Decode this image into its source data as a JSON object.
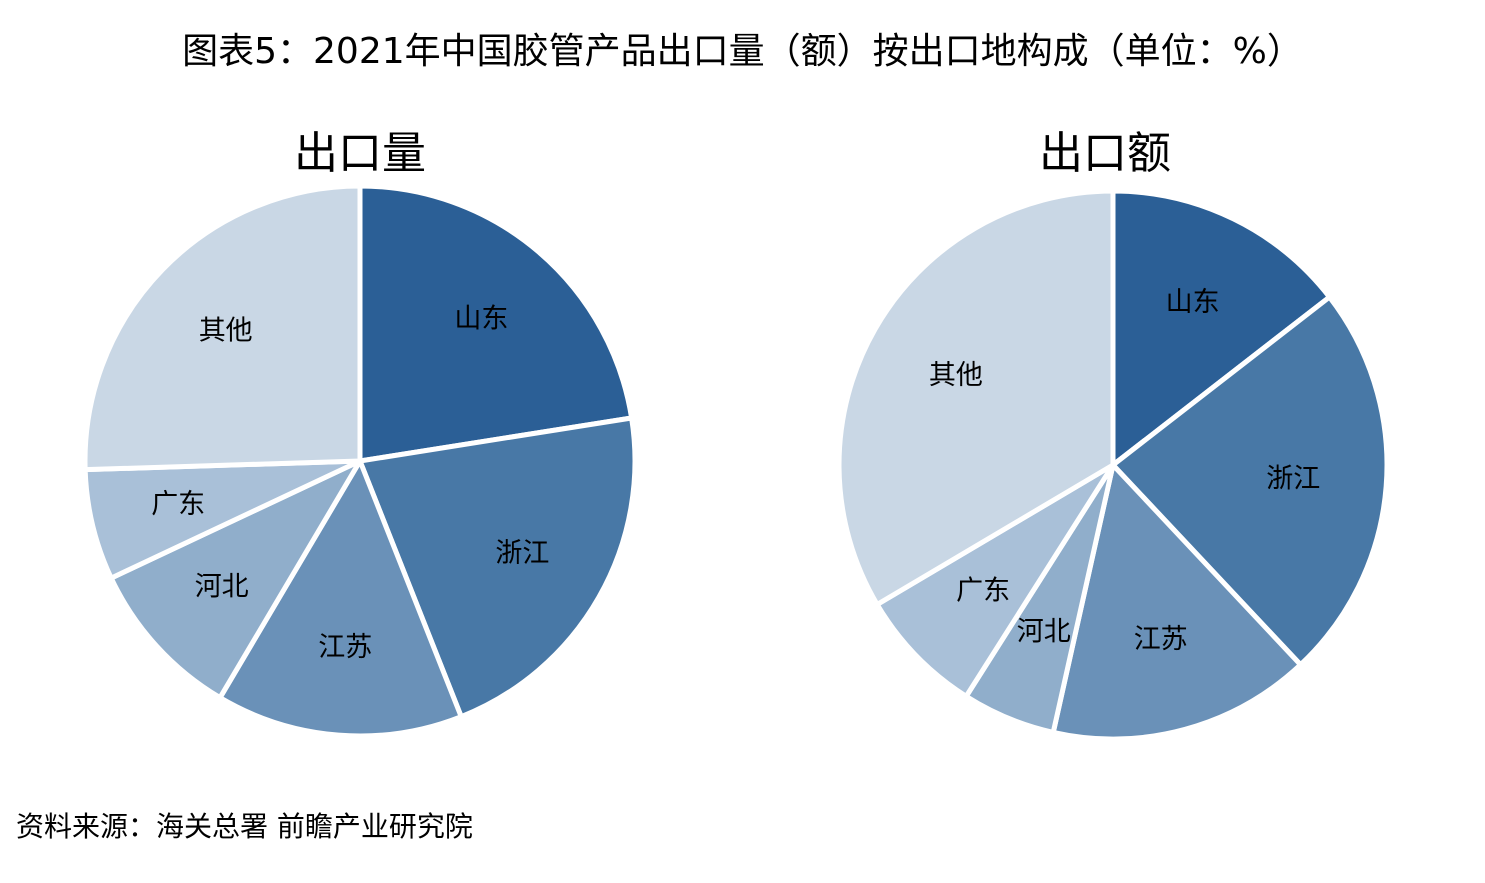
{
  "title": "图表5：2021年中国胶管产品出口量（额）按出口地构成（单位：%）",
  "source": "资料来源：海关总署 前瞻产业研究院",
  "chart_data": [
    {
      "type": "pie",
      "title": "出口量",
      "categories": [
        "山东",
        "浙江",
        "江苏",
        "河北",
        "广东",
        "其他"
      ],
      "values": [
        22.5,
        21.5,
        14.5,
        9.5,
        6.5,
        25.5
      ],
      "colors": [
        "#2b5f96",
        "#4878a6",
        "#6a91b8",
        "#90aecb",
        "#a9c0d8",
        "#c9d7e5"
      ]
    },
    {
      "type": "pie",
      "title": "出口额",
      "categories": [
        "山东",
        "浙江",
        "江苏",
        "河北",
        "广东",
        "其他"
      ],
      "values": [
        14.5,
        23.5,
        15.5,
        5.5,
        7.5,
        33.5
      ],
      "colors": [
        "#2b5f96",
        "#4878a6",
        "#6a91b8",
        "#90aecb",
        "#a9c0d8",
        "#c9d7e5"
      ]
    }
  ]
}
